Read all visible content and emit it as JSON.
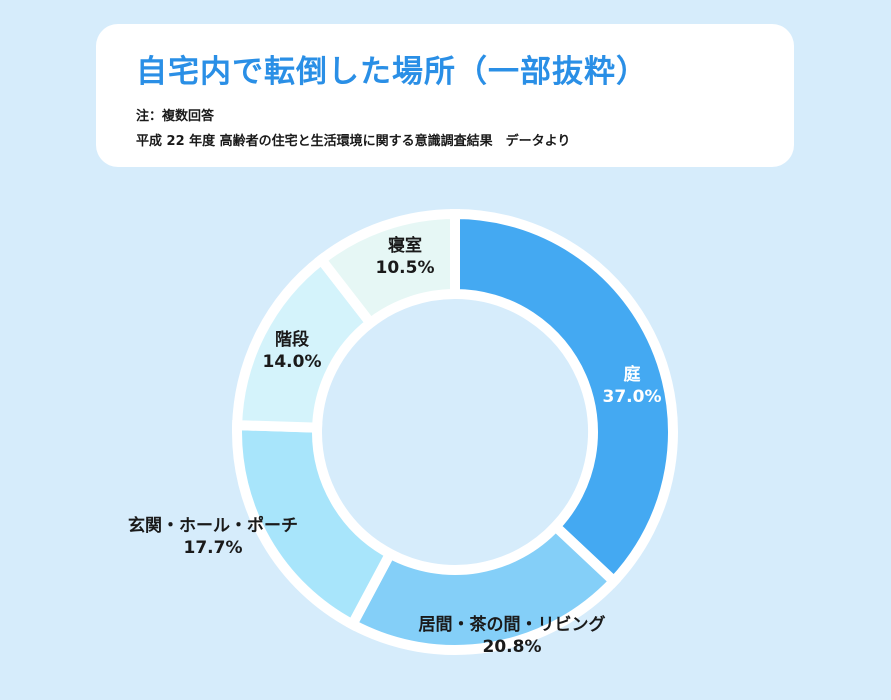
{
  "header": {
    "title": "自宅内で転倒した場所（一部抜粋）",
    "note": "注：複数回答",
    "source": "平成 22 年度 高齢者の住宅と生活環境に関する意識調査結果　データより"
  },
  "colors": {
    "background": "#d6ecfb",
    "title": "#2a8fe6",
    "label_dark": "#1a1a1a",
    "label_light": "#ffffff"
  },
  "chart_data": {
    "type": "pie",
    "variant": "donut",
    "title": "自宅内で転倒した場所（一部抜粋）",
    "unit": "%",
    "categories": [
      "庭",
      "居間・茶の間・リビング",
      "玄関・ホール・ポーチ",
      "階段",
      "寝室"
    ],
    "values": [
      37.0,
      20.8,
      17.7,
      14.0,
      10.5
    ],
    "value_labels": [
      "37.0%",
      "20.8%",
      "17.7%",
      "14.0%",
      "10.5%"
    ],
    "colors": [
      "#44a9f2",
      "#84cff8",
      "#a8e5fb",
      "#d4f3fb",
      "#e6f7f5"
    ],
    "label_colors": [
      "#ffffff",
      "#1a1a1a",
      "#1a1a1a",
      "#1a1a1a",
      "#1a1a1a"
    ],
    "start": "12 o'clock",
    "direction": "clockwise"
  }
}
